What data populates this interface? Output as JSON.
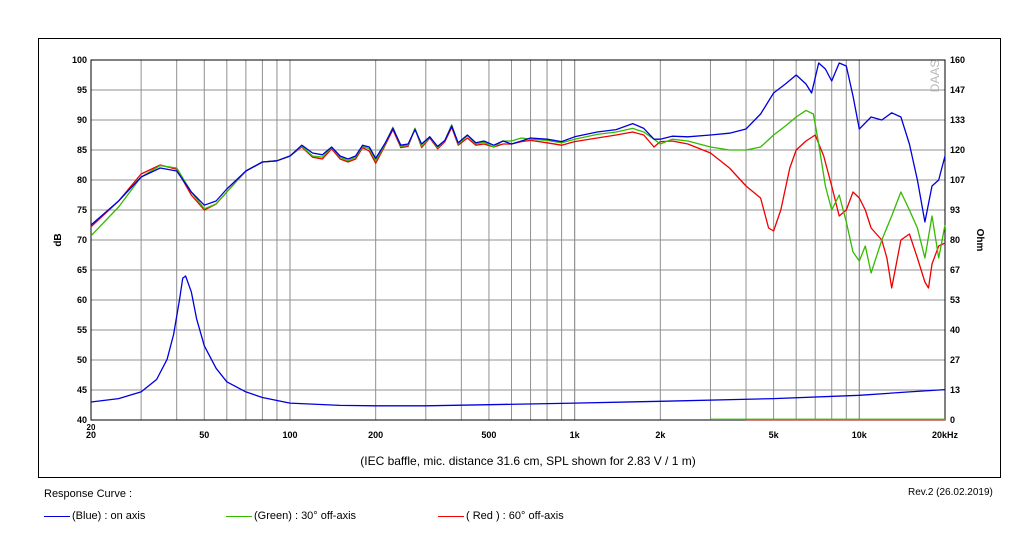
{
  "chart_data": {
    "type": "line",
    "caption": "(IEC baffle, mic. distance 31.6 cm, SPL shown for 2.83 V / 1 m)",
    "ylabel_left": "dB",
    "ylabel_right": "Ohm",
    "watermark": "DAAS",
    "x_scale": "log",
    "xlim": [
      20,
      20000
    ],
    "ylim_left": [
      40,
      100
    ],
    "ylim_right": [
      0,
      160
    ],
    "grid": true,
    "x_ticks": [
      {
        "value": 20,
        "label": "20"
      },
      {
        "value": 50,
        "label": "50"
      },
      {
        "value": 100,
        "label": "100"
      },
      {
        "value": 200,
        "label": "200"
      },
      {
        "value": 500,
        "label": "500"
      },
      {
        "value": 1000,
        "label": "1k"
      },
      {
        "value": 2000,
        "label": "2k"
      },
      {
        "value": 5000,
        "label": "5k"
      },
      {
        "value": 10000,
        "label": "10k"
      },
      {
        "value": 20000,
        "label": "20kHz"
      }
    ],
    "y_ticks_left": [
      "40",
      "45",
      "50",
      "55",
      "60",
      "65",
      "70",
      "75",
      "80",
      "85",
      "90",
      "95",
      "100"
    ],
    "y_ticks_right": [
      {
        "value": 0,
        "label": "0"
      },
      {
        "value": 13.3,
        "label": "13"
      },
      {
        "value": 26.7,
        "label": "27"
      },
      {
        "value": 40,
        "label": "40"
      },
      {
        "value": 53.3,
        "label": "53"
      },
      {
        "value": 66.7,
        "label": "67"
      },
      {
        "value": 80,
        "label": "80"
      },
      {
        "value": 93.3,
        "label": "93"
      },
      {
        "value": 106.7,
        "label": "107"
      },
      {
        "value": 120,
        "label": "120"
      },
      {
        "value": 133.3,
        "label": "133"
      },
      {
        "value": 146.7,
        "label": "147"
      },
      {
        "value": 160,
        "label": "160"
      }
    ],
    "series": [
      {
        "name": "(Blue)  : on axis",
        "color": "#0000dd",
        "axis": "left",
        "points": [
          [
            20,
            72.5
          ],
          [
            25,
            76.5
          ],
          [
            30,
            80.5
          ],
          [
            35,
            82
          ],
          [
            40,
            81.5
          ],
          [
            45,
            78
          ],
          [
            50,
            75.8
          ],
          [
            55,
            76.5
          ],
          [
            60,
            78.5
          ],
          [
            70,
            81.5
          ],
          [
            80,
            83
          ],
          [
            90,
            83.2
          ],
          [
            100,
            84
          ],
          [
            110,
            85.8
          ],
          [
            120,
            84.5
          ],
          [
            130,
            84.2
          ],
          [
            140,
            85.5
          ],
          [
            150,
            84
          ],
          [
            160,
            83.5
          ],
          [
            170,
            84
          ],
          [
            180,
            85.8
          ],
          [
            190,
            85.5
          ],
          [
            200,
            83.6
          ],
          [
            215,
            86
          ],
          [
            230,
            88.6
          ],
          [
            245,
            85.8
          ],
          [
            260,
            86
          ],
          [
            275,
            88.4
          ],
          [
            290,
            86
          ],
          [
            310,
            87.2
          ],
          [
            330,
            85.6
          ],
          [
            350,
            86.6
          ],
          [
            370,
            89
          ],
          [
            390,
            86.2
          ],
          [
            420,
            87.5
          ],
          [
            450,
            86.2
          ],
          [
            480,
            86.5
          ],
          [
            520,
            85.8
          ],
          [
            560,
            86.5
          ],
          [
            600,
            86
          ],
          [
            650,
            86.5
          ],
          [
            700,
            87
          ],
          [
            800,
            86.8
          ],
          [
            900,
            86.4
          ],
          [
            1000,
            87.2
          ],
          [
            1200,
            88
          ],
          [
            1400,
            88.4
          ],
          [
            1600,
            89.4
          ],
          [
            1750,
            88.6
          ],
          [
            1900,
            86.8
          ],
          [
            2000,
            86.8
          ],
          [
            2200,
            87.3
          ],
          [
            2500,
            87.2
          ],
          [
            3000,
            87.5
          ],
          [
            3500,
            87.8
          ],
          [
            4000,
            88.5
          ],
          [
            4500,
            91
          ],
          [
            5000,
            94.5
          ],
          [
            5500,
            96
          ],
          [
            6000,
            97.5
          ],
          [
            6500,
            96
          ],
          [
            6800,
            94.5
          ],
          [
            7200,
            99.5
          ],
          [
            7600,
            98.5
          ],
          [
            8000,
            96.5
          ],
          [
            8500,
            99.5
          ],
          [
            9000,
            99
          ],
          [
            9500,
            94
          ],
          [
            10000,
            88.5
          ],
          [
            11000,
            90.5
          ],
          [
            12000,
            90
          ],
          [
            13000,
            91.2
          ],
          [
            14000,
            90.5
          ],
          [
            15000,
            86
          ],
          [
            16000,
            80
          ],
          [
            17000,
            73
          ],
          [
            18000,
            79
          ],
          [
            19000,
            80
          ],
          [
            20000,
            84
          ]
        ]
      },
      {
        "name": "(Green) : 30° off-axis",
        "color": "#33bb00",
        "axis": "left",
        "points": [
          [
            20,
            70.7
          ],
          [
            25,
            75.5
          ],
          [
            30,
            80.5
          ],
          [
            35,
            82.4
          ],
          [
            40,
            82
          ],
          [
            45,
            78
          ],
          [
            50,
            75.2
          ],
          [
            55,
            76
          ],
          [
            60,
            78
          ],
          [
            70,
            81.5
          ],
          [
            80,
            83
          ],
          [
            90,
            83.2
          ],
          [
            100,
            84
          ],
          [
            110,
            85.6
          ],
          [
            120,
            84
          ],
          [
            130,
            83.8
          ],
          [
            140,
            85.4
          ],
          [
            150,
            83.8
          ],
          [
            160,
            83.2
          ],
          [
            170,
            83.8
          ],
          [
            180,
            85.6
          ],
          [
            190,
            85.2
          ],
          [
            200,
            83.2
          ],
          [
            215,
            85.8
          ],
          [
            230,
            88.8
          ],
          [
            245,
            85.6
          ],
          [
            260,
            85.8
          ],
          [
            275,
            88.6
          ],
          [
            290,
            85.6
          ],
          [
            310,
            87.2
          ],
          [
            330,
            85.4
          ],
          [
            350,
            86.6
          ],
          [
            370,
            89.2
          ],
          [
            390,
            86
          ],
          [
            420,
            87.4
          ],
          [
            450,
            86
          ],
          [
            480,
            86.3
          ],
          [
            520,
            85.5
          ],
          [
            560,
            86.5
          ],
          [
            600,
            86.5
          ],
          [
            650,
            87
          ],
          [
            700,
            86.8
          ],
          [
            800,
            86.6
          ],
          [
            900,
            86.2
          ],
          [
            1000,
            86.8
          ],
          [
            1200,
            87.6
          ],
          [
            1400,
            88
          ],
          [
            1600,
            88.6
          ],
          [
            1750,
            88
          ],
          [
            1900,
            86.8
          ],
          [
            2000,
            86
          ],
          [
            2200,
            86.8
          ],
          [
            2500,
            86.5
          ],
          [
            3000,
            85.5
          ],
          [
            3500,
            85
          ],
          [
            4000,
            85
          ],
          [
            4500,
            85.5
          ],
          [
            5000,
            87.5
          ],
          [
            5500,
            89
          ],
          [
            6000,
            90.5
          ],
          [
            6500,
            91.6
          ],
          [
            6900,
            91
          ],
          [
            7200,
            86
          ],
          [
            7600,
            79
          ],
          [
            8000,
            75
          ],
          [
            8500,
            77.5
          ],
          [
            9000,
            73
          ],
          [
            9500,
            68
          ],
          [
            10000,
            66.5
          ],
          [
            10500,
            69
          ],
          [
            11000,
            64.5
          ],
          [
            12000,
            70
          ],
          [
            13000,
            74
          ],
          [
            14000,
            78
          ],
          [
            15000,
            75
          ],
          [
            16000,
            72
          ],
          [
            17000,
            67
          ],
          [
            18000,
            74
          ],
          [
            19000,
            67
          ],
          [
            20000,
            72.5
          ]
        ]
      },
      {
        "name": "( Red ) : 60° off-axis",
        "color": "#ee0000",
        "axis": "left",
        "points": [
          [
            20,
            72.2
          ],
          [
            25,
            76.5
          ],
          [
            30,
            81
          ],
          [
            35,
            82.5
          ],
          [
            40,
            81.8
          ],
          [
            45,
            77.5
          ],
          [
            50,
            75
          ],
          [
            55,
            76
          ],
          [
            60,
            78
          ],
          [
            70,
            81.5
          ],
          [
            80,
            83
          ],
          [
            90,
            83.2
          ],
          [
            100,
            84
          ],
          [
            110,
            85.5
          ],
          [
            120,
            83.8
          ],
          [
            130,
            83.5
          ],
          [
            140,
            85.2
          ],
          [
            150,
            83.5
          ],
          [
            160,
            83
          ],
          [
            170,
            83.5
          ],
          [
            180,
            85.4
          ],
          [
            190,
            84.8
          ],
          [
            200,
            82.8
          ],
          [
            215,
            85.6
          ],
          [
            230,
            88.4
          ],
          [
            245,
            85.4
          ],
          [
            260,
            85.6
          ],
          [
            275,
            88.6
          ],
          [
            290,
            85.4
          ],
          [
            310,
            87
          ],
          [
            330,
            85.2
          ],
          [
            350,
            86.4
          ],
          [
            370,
            88.8
          ],
          [
            390,
            85.8
          ],
          [
            420,
            87
          ],
          [
            450,
            85.8
          ],
          [
            480,
            86
          ],
          [
            520,
            85.5
          ],
          [
            560,
            86
          ],
          [
            600,
            86
          ],
          [
            650,
            86.4
          ],
          [
            700,
            86.6
          ],
          [
            800,
            86.2
          ],
          [
            900,
            85.8
          ],
          [
            1000,
            86.4
          ],
          [
            1200,
            87
          ],
          [
            1400,
            87.5
          ],
          [
            1600,
            88
          ],
          [
            1750,
            87.5
          ],
          [
            1900,
            85.5
          ],
          [
            2000,
            86.4
          ],
          [
            2200,
            86.5
          ],
          [
            2500,
            86
          ],
          [
            3000,
            84.5
          ],
          [
            3500,
            82
          ],
          [
            4000,
            79
          ],
          [
            4500,
            77
          ],
          [
            4800,
            72
          ],
          [
            5000,
            71.5
          ],
          [
            5300,
            75
          ],
          [
            5700,
            82
          ],
          [
            6000,
            85
          ],
          [
            6500,
            86.5
          ],
          [
            7000,
            87.5
          ],
          [
            7500,
            84
          ],
          [
            8000,
            79
          ],
          [
            8500,
            74
          ],
          [
            9000,
            75
          ],
          [
            9500,
            78
          ],
          [
            10000,
            77
          ],
          [
            10500,
            75
          ],
          [
            11000,
            72
          ],
          [
            12000,
            70
          ],
          [
            12500,
            67
          ],
          [
            13000,
            62
          ],
          [
            14000,
            70
          ],
          [
            15000,
            71
          ],
          [
            16000,
            67
          ],
          [
            17000,
            63
          ],
          [
            17500,
            62
          ],
          [
            18000,
            66
          ],
          [
            19000,
            69
          ],
          [
            20000,
            69.5
          ]
        ]
      },
      {
        "name": "impedance",
        "color": "#0000dd",
        "axis": "right",
        "points": [
          [
            20,
            8
          ],
          [
            25,
            9.5
          ],
          [
            30,
            12.5
          ],
          [
            34,
            18
          ],
          [
            37,
            27
          ],
          [
            39,
            38
          ],
          [
            41,
            54
          ],
          [
            42,
            63
          ],
          [
            43,
            64
          ],
          [
            45,
            57
          ],
          [
            47,
            45
          ],
          [
            50,
            33
          ],
          [
            55,
            23
          ],
          [
            60,
            17
          ],
          [
            70,
            12.5
          ],
          [
            80,
            10
          ],
          [
            100,
            7.5
          ],
          [
            150,
            6.5
          ],
          [
            200,
            6.3
          ],
          [
            300,
            6.3
          ],
          [
            500,
            6.8
          ],
          [
            1000,
            7.5
          ],
          [
            2000,
            8.3
          ],
          [
            5000,
            9.5
          ],
          [
            10000,
            11
          ],
          [
            15000,
            12.5
          ],
          [
            20000,
            13.5
          ]
        ]
      },
      {
        "name": "green-baseline",
        "color": "#33bb00",
        "axis": "right",
        "points": [
          [
            3000,
            0.3
          ],
          [
            20000,
            0.3
          ]
        ]
      },
      {
        "name": "red-baseline",
        "color": "#ee0000",
        "axis": "right",
        "points": [
          [
            4000,
            0.15
          ],
          [
            20000,
            0.15
          ]
        ]
      }
    ]
  },
  "legend": {
    "title": "Response Curve :",
    "items": [
      {
        "label": "(Blue)  : on axis",
        "color": "#0000dd"
      },
      {
        "label": "(Green) : 30° off-axis",
        "color": "#33bb00"
      },
      {
        "label": "( Red ) : 60° off-axis",
        "color": "#ee0000"
      }
    ]
  },
  "revision": "Rev.2 (26.02.2019)"
}
